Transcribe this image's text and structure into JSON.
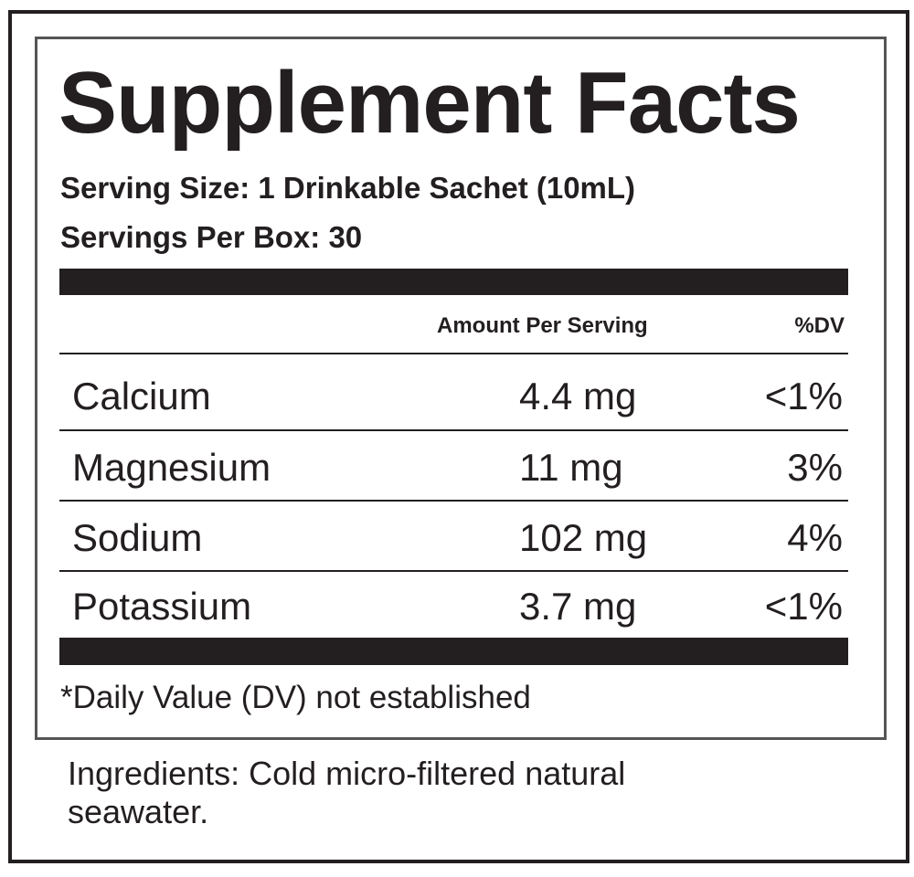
{
  "label": {
    "title": "Supplement Facts",
    "serving_size": "Serving Size: 1 Drinkable Sachet (10mL)",
    "servings_per_box": "Servings Per Box: 30",
    "header": {
      "amount": "Amount Per Serving",
      "dv": "%DV"
    },
    "rows": [
      {
        "name": "Calcium",
        "amount": "4.4 mg",
        "dv": "<1%"
      },
      {
        "name": "Magnesium",
        "amount": "11 mg",
        "dv": "3%"
      },
      {
        "name": "Sodium",
        "amount": "102 mg",
        "dv": "4%"
      },
      {
        "name": "Potassium",
        "amount": "3.7 mg",
        "dv": "<1%"
      }
    ],
    "footnote": "*Daily Value (DV) not established",
    "ingredients": "Ingredients: Cold micro-filtered natural seawater."
  }
}
